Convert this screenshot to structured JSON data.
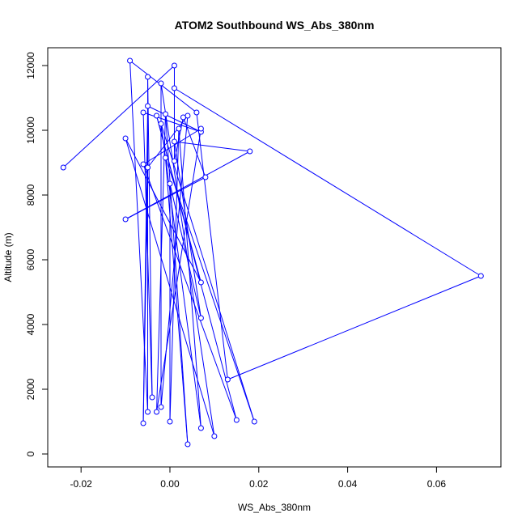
{
  "chart_data": {
    "type": "line",
    "title": "ATOM2 Southbound WS_Abs_380nm",
    "xlabel": "WS_Abs_380nm",
    "ylabel": "Altitude (m)",
    "xlim": [
      -0.0275,
      0.0745
    ],
    "ylim": [
      -400,
      12550
    ],
    "xticks": [
      -0.02,
      0.0,
      0.02,
      0.04,
      0.06
    ],
    "xtick_labels": [
      "-0.02",
      "0.00",
      "0.02",
      "0.04",
      "0.06"
    ],
    "yticks": [
      0,
      2000,
      4000,
      6000,
      8000,
      10000,
      12000
    ],
    "ytick_labels": [
      "0",
      "2000",
      "4000",
      "6000",
      "8000",
      "10000",
      "12000"
    ],
    "grid": false,
    "series": [
      {
        "color": "#0000ff",
        "marker": "open-circle",
        "points": [
          {
            "x": 0.001,
            "y": 11300
          },
          {
            "x": 0.07,
            "y": 5500
          },
          {
            "x": 0.013,
            "y": 2300
          },
          {
            "x": 0.006,
            "y": 10550
          },
          {
            "x": -0.009,
            "y": 12150
          },
          {
            "x": -0.005,
            "y": 1300
          },
          {
            "x": -0.005,
            "y": 11650
          },
          {
            "x": -0.004,
            "y": 1750
          },
          {
            "x": -0.006,
            "y": 10550
          },
          {
            "x": 0.007,
            "y": 9950
          },
          {
            "x": -0.005,
            "y": 10750
          },
          {
            "x": -0.006,
            "y": 950
          },
          {
            "x": -0.005,
            "y": 8850
          },
          {
            "x": 0.004,
            "y": 10450
          },
          {
            "x": -0.002,
            "y": 1450
          },
          {
            "x": -0.002,
            "y": 11450
          },
          {
            "x": 0.01,
            "y": 550
          },
          {
            "x": -0.01,
            "y": 9750
          },
          {
            "x": 0.007,
            "y": 5300
          },
          {
            "x": -0.003,
            "y": 10450
          },
          {
            "x": 0.015,
            "y": 1050
          },
          {
            "x": -0.006,
            "y": 8950
          },
          {
            "x": 0.007,
            "y": 10050
          },
          {
            "x": -0.003,
            "y": 1300
          },
          {
            "x": -0.001,
            "y": 10500
          },
          {
            "x": 0.004,
            "y": 300
          },
          {
            "x": -0.001,
            "y": 9150
          },
          {
            "x": 0.019,
            "y": 1000
          },
          {
            "x": -0.002,
            "y": 10200
          },
          {
            "x": 0.007,
            "y": 800
          },
          {
            "x": 0.002,
            "y": 10050
          },
          {
            "x": 0.0,
            "y": 1000
          },
          {
            "x": 0.0,
            "y": 8350
          },
          {
            "x": 0.007,
            "y": 4200
          },
          {
            "x": 0.001,
            "y": 9650
          },
          {
            "x": 0.018,
            "y": 9350
          },
          {
            "x": -0.01,
            "y": 7250
          },
          {
            "x": 0.008,
            "y": 8550
          },
          {
            "x": 0.003,
            "y": 10400
          },
          {
            "x": 0.001,
            "y": 9050
          },
          {
            "x": 0.001,
            "y": 12000
          },
          {
            "x": -0.024,
            "y": 8850
          }
        ]
      }
    ]
  }
}
